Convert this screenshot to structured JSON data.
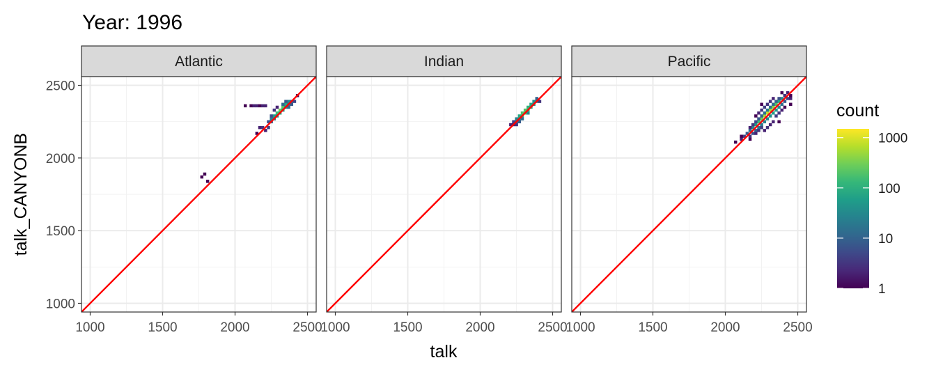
{
  "chart_data": {
    "type": "heatmap",
    "title": "Year: 1996",
    "xlabel": "talk",
    "ylabel": "talk_CANYONB",
    "xlim": [
      940,
      2560
    ],
    "ylim": [
      940,
      2560
    ],
    "x_ticks": [
      1000,
      1500,
      2000,
      2500
    ],
    "y_ticks": [
      1000,
      1500,
      2000,
      2500
    ],
    "grid": true,
    "bin_width": 20,
    "reference_line": {
      "type": "identity",
      "slope": 1,
      "intercept": 0,
      "color": "#ff0000"
    },
    "legend": {
      "title": "count",
      "placement": "right",
      "scale": "log10",
      "range": [
        1,
        1500
      ],
      "breaks": [
        1,
        10,
        100,
        1000
      ],
      "break_labels": [
        "1",
        "10",
        "100",
        "1000"
      ],
      "colors": [
        "#440154",
        "#482878",
        "#3e4989",
        "#31688e",
        "#26828e",
        "#1f9e89",
        "#35b779",
        "#6ece58",
        "#b5de2b",
        "#fde725"
      ]
    },
    "panels": [
      {
        "label": "Atlantic",
        "bins": [
          [
            1790,
            1890,
            1
          ],
          [
            1770,
            1870,
            1
          ],
          [
            1810,
            1840,
            1
          ],
          [
            2070,
            2360,
            1
          ],
          [
            2110,
            2360,
            1
          ],
          [
            2130,
            2360,
            2
          ],
          [
            2150,
            2360,
            2
          ],
          [
            2170,
            2360,
            1
          ],
          [
            2190,
            2360,
            2
          ],
          [
            2210,
            2360,
            2
          ],
          [
            2150,
            2170,
            1
          ],
          [
            2170,
            2210,
            2
          ],
          [
            2190,
            2210,
            3
          ],
          [
            2210,
            2190,
            2
          ],
          [
            2230,
            2210,
            4
          ],
          [
            2230,
            2250,
            6
          ],
          [
            2250,
            2250,
            10
          ],
          [
            2250,
            2270,
            20
          ],
          [
            2270,
            2290,
            60
          ],
          [
            2290,
            2310,
            150
          ],
          [
            2310,
            2330,
            300
          ],
          [
            2330,
            2350,
            200
          ],
          [
            2350,
            2370,
            80
          ],
          [
            2370,
            2390,
            30
          ],
          [
            2390,
            2390,
            10
          ],
          [
            2290,
            2290,
            40
          ],
          [
            2310,
            2310,
            80
          ],
          [
            2270,
            2270,
            25
          ],
          [
            2330,
            2330,
            50
          ],
          [
            2350,
            2350,
            30
          ],
          [
            2370,
            2370,
            15
          ],
          [
            2390,
            2370,
            8
          ],
          [
            2410,
            2390,
            5
          ],
          [
            2330,
            2370,
            12
          ],
          [
            2350,
            2390,
            8
          ],
          [
            2430,
            2430,
            1
          ],
          [
            2270,
            2330,
            3
          ],
          [
            2290,
            2350,
            2
          ],
          [
            2250,
            2290,
            6
          ],
          [
            2370,
            2350,
            10
          ]
        ]
      },
      {
        "label": "Indian",
        "bins": [
          [
            2210,
            2230,
            2
          ],
          [
            2230,
            2250,
            4
          ],
          [
            2250,
            2250,
            10
          ],
          [
            2250,
            2270,
            25
          ],
          [
            2270,
            2270,
            40
          ],
          [
            2270,
            2290,
            80
          ],
          [
            2290,
            2290,
            120
          ],
          [
            2290,
            2310,
            180
          ],
          [
            2310,
            2310,
            250
          ],
          [
            2310,
            2330,
            200
          ],
          [
            2330,
            2330,
            150
          ],
          [
            2330,
            2350,
            120
          ],
          [
            2350,
            2350,
            90
          ],
          [
            2350,
            2370,
            70
          ],
          [
            2370,
            2370,
            50
          ],
          [
            2370,
            2390,
            40
          ],
          [
            2390,
            2390,
            20
          ],
          [
            2390,
            2410,
            10
          ],
          [
            2250,
            2230,
            3
          ],
          [
            2230,
            2230,
            2
          ],
          [
            2410,
            2390,
            3
          ],
          [
            2290,
            2270,
            12
          ],
          [
            2330,
            2310,
            30
          ],
          [
            2270,
            2250,
            8
          ]
        ]
      },
      {
        "label": "Pacific",
        "bins": [
          [
            2070,
            2110,
            1
          ],
          [
            2110,
            2130,
            2
          ],
          [
            2130,
            2150,
            4
          ],
          [
            2150,
            2170,
            8
          ],
          [
            2170,
            2190,
            15
          ],
          [
            2190,
            2210,
            30
          ],
          [
            2210,
            2230,
            60
          ],
          [
            2230,
            2250,
            150
          ],
          [
            2250,
            2270,
            300
          ],
          [
            2270,
            2290,
            500
          ],
          [
            2290,
            2310,
            800
          ],
          [
            2310,
            2330,
            600
          ],
          [
            2330,
            2350,
            400
          ],
          [
            2350,
            2370,
            200
          ],
          [
            2370,
            2390,
            80
          ],
          [
            2390,
            2410,
            30
          ],
          [
            2410,
            2430,
            8
          ],
          [
            2170,
            2150,
            3
          ],
          [
            2190,
            2170,
            6
          ],
          [
            2210,
            2190,
            10
          ],
          [
            2230,
            2210,
            15
          ],
          [
            2250,
            2230,
            20
          ],
          [
            2270,
            2250,
            25
          ],
          [
            2290,
            2270,
            30
          ],
          [
            2310,
            2290,
            40
          ],
          [
            2330,
            2310,
            60
          ],
          [
            2350,
            2330,
            50
          ],
          [
            2370,
            2350,
            30
          ],
          [
            2390,
            2370,
            15
          ],
          [
            2410,
            2390,
            8
          ],
          [
            2430,
            2410,
            4
          ],
          [
            2450,
            2370,
            1
          ],
          [
            2450,
            2410,
            2
          ],
          [
            2450,
            2430,
            1
          ],
          [
            2410,
            2430,
            3
          ],
          [
            2430,
            2450,
            2
          ],
          [
            2390,
            2450,
            1
          ],
          [
            2370,
            2410,
            6
          ],
          [
            2350,
            2390,
            10
          ],
          [
            2330,
            2370,
            12
          ],
          [
            2310,
            2350,
            15
          ],
          [
            2290,
            2330,
            20
          ],
          [
            2270,
            2310,
            15
          ],
          [
            2250,
            2290,
            10
          ],
          [
            2230,
            2270,
            8
          ],
          [
            2210,
            2250,
            5
          ],
          [
            2190,
            2230,
            3
          ],
          [
            2170,
            2210,
            2
          ],
          [
            2250,
            2330,
            3
          ],
          [
            2270,
            2350,
            4
          ],
          [
            2290,
            2370,
            3
          ],
          [
            2230,
            2310,
            2
          ],
          [
            2270,
            2190,
            2
          ],
          [
            2290,
            2210,
            3
          ],
          [
            2310,
            2230,
            2
          ],
          [
            2330,
            2250,
            2
          ],
          [
            2350,
            2290,
            4
          ],
          [
            2370,
            2310,
            3
          ],
          [
            2390,
            2330,
            2
          ],
          [
            2410,
            2350,
            1
          ],
          [
            2210,
            2170,
            2
          ],
          [
            2230,
            2190,
            3
          ],
          [
            2250,
            2210,
            4
          ],
          [
            2170,
            2130,
            1
          ],
          [
            2110,
            2150,
            1
          ],
          [
            2370,
            2250,
            1
          ],
          [
            2250,
            2370,
            1
          ],
          [
            2210,
            2290,
            1
          ],
          [
            2330,
            2410,
            2
          ],
          [
            2310,
            2390,
            3
          ]
        ]
      }
    ]
  }
}
